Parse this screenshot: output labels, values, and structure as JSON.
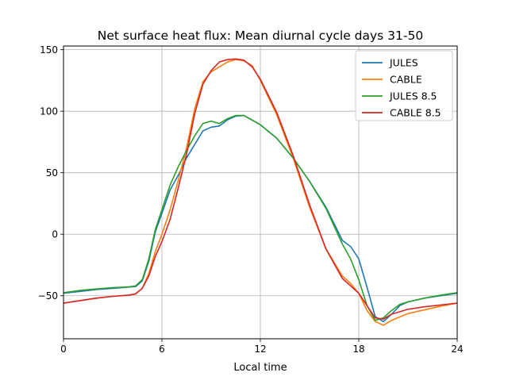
{
  "chart_data": {
    "type": "line",
    "title": "Net surface heat flux: Mean diurnal cycle days 31-50",
    "xlabel": "Local time",
    "ylabel": "",
    "xlim": [
      0,
      24
    ],
    "ylim": [
      -85,
      153
    ],
    "xticks": [
      0,
      6,
      12,
      18,
      24
    ],
    "yticks": [
      -50,
      0,
      50,
      100,
      150
    ],
    "grid": true,
    "legend_position": "top-right",
    "series": [
      {
        "name": "JULES",
        "color": "#1f77b4",
        "x": [
          0,
          1,
          2,
          3,
          4,
          4.4,
          4.8,
          5.2,
          5.6,
          6,
          6.5,
          7,
          7.5,
          8,
          8.5,
          9,
          9.5,
          10,
          10.5,
          11,
          12,
          13,
          14,
          15,
          16,
          17,
          17.5,
          18,
          18.5,
          19,
          19.5,
          20,
          20.5,
          21,
          22,
          23,
          24
        ],
        "y": [
          -48,
          -46.5,
          -45,
          -44,
          -43,
          -42.5,
          -38,
          -22,
          2,
          17,
          36,
          48,
          62,
          73,
          84,
          87,
          88,
          93,
          96,
          96.5,
          89,
          78,
          62,
          43,
          22,
          -5,
          -10,
          -20,
          -43,
          -67,
          -71,
          -65,
          -58,
          -55,
          -52,
          -50,
          -48
        ]
      },
      {
        "name": "CABLE",
        "color": "#ff7f0e",
        "x": [
          0,
          1,
          2,
          3,
          4,
          4.4,
          4.8,
          5.2,
          5.6,
          6,
          6.5,
          7,
          7.5,
          8,
          8.5,
          9,
          9.5,
          10,
          10.5,
          11,
          11.5,
          12,
          13,
          14,
          15,
          16,
          17,
          17.5,
          18,
          18.5,
          19,
          19.5,
          20,
          21,
          22,
          23,
          24
        ],
        "y": [
          -56,
          -54,
          -52,
          -50.5,
          -49.5,
          -48.5,
          -44,
          -32,
          -14,
          0,
          20,
          44,
          70,
          102,
          124,
          132,
          136,
          140,
          142,
          141,
          137,
          125,
          97,
          62,
          22,
          -12,
          -34,
          -40,
          -48,
          -62,
          -71,
          -74,
          -70,
          -64.5,
          -61.5,
          -58.5,
          -56
        ]
      },
      {
        "name": "JULES 8.5",
        "color": "#2ca02c",
        "x": [
          0,
          1,
          2,
          3,
          4,
          4.4,
          4.8,
          5.2,
          5.6,
          6,
          6.5,
          7,
          7.5,
          8,
          8.5,
          9,
          9.5,
          10,
          10.5,
          11,
          12,
          13,
          14,
          15,
          16,
          17,
          17.5,
          18,
          18.5,
          19,
          19.5,
          20,
          20.5,
          21,
          22,
          23,
          24
        ],
        "y": [
          -47.5,
          -45.7,
          -44.5,
          -43.4,
          -42.8,
          -42,
          -37,
          -20,
          4,
          20,
          40,
          55,
          68,
          80,
          90,
          92,
          90,
          94,
          96.5,
          96.5,
          89,
          78,
          62,
          43,
          21,
          -8,
          -20,
          -37,
          -58,
          -70,
          -68,
          -62,
          -57,
          -55,
          -52,
          -49.5,
          -47.5
        ]
      },
      {
        "name": "CABLE 8.5",
        "color": "#d62728",
        "x": [
          0,
          1,
          2,
          3,
          4,
          4.4,
          4.8,
          5.2,
          5.6,
          6,
          6.5,
          7,
          7.5,
          8,
          8.5,
          9,
          9.5,
          10,
          10.5,
          11,
          11.5,
          12,
          13,
          14,
          15,
          16,
          17,
          17.5,
          18,
          18.5,
          19,
          19.5,
          20,
          21,
          22,
          23,
          24
        ],
        "y": [
          -56,
          -54,
          -52,
          -50.5,
          -49.5,
          -48.5,
          -44,
          -34,
          -18,
          -6,
          12,
          38,
          65,
          98,
          122,
          133,
          140,
          142,
          142.5,
          141.5,
          136,
          126,
          99,
          64,
          24,
          -12,
          -36,
          -42,
          -48,
          -58,
          -68,
          -69,
          -65,
          -61,
          -59,
          -57.5,
          -56
        ]
      }
    ]
  }
}
